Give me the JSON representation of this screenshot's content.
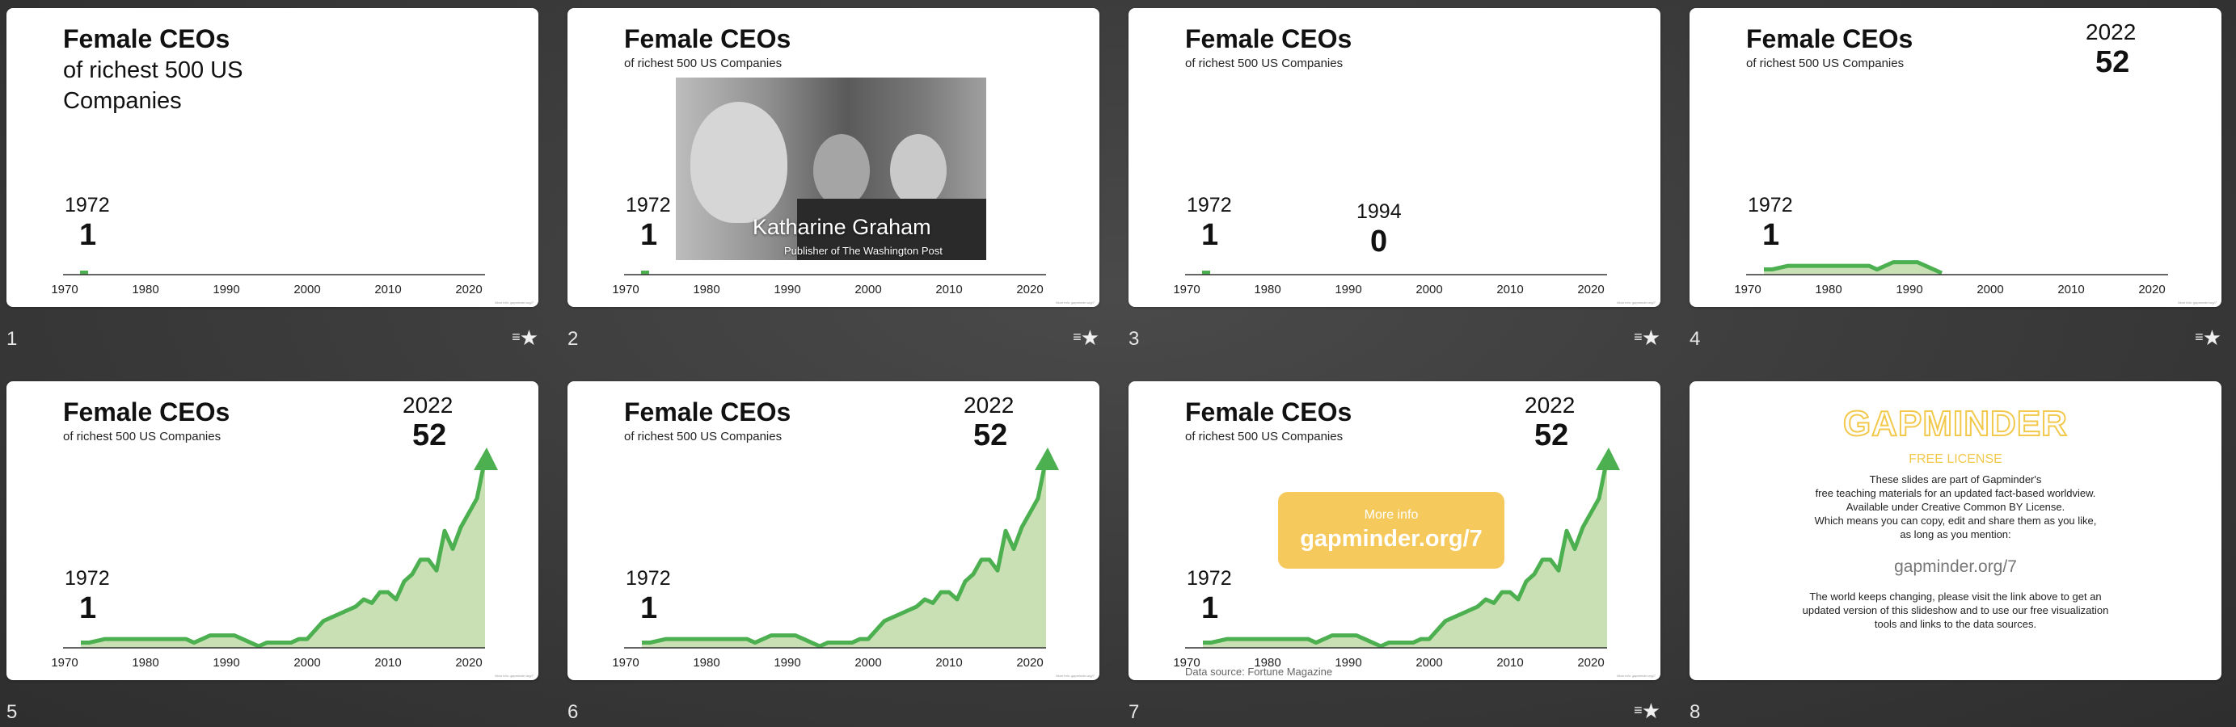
{
  "title": "Female CEOs",
  "subtitle": "of richest 500 US Companies",
  "subtitle_s1": "of richest 500 US Companies",
  "start_year": "1972",
  "start_value": "1",
  "mid_year": "1994",
  "mid_value": "0",
  "end_year": "2022",
  "end_value": "52",
  "axis_ticks": [
    "1970",
    "1980",
    "1990",
    "2000",
    "2010",
    "2020"
  ],
  "photo": {
    "name": "Katharine Graham",
    "role": "Publisher of The Washington Post"
  },
  "more_info": {
    "label": "More info",
    "url": "gapminder.org/7"
  },
  "data_source": "Data source: Fortune Magazine",
  "credit": "More info: gapminder.org/7",
  "fav_icon": "star-list-icon",
  "slide_numbers": [
    "1",
    "2",
    "3",
    "4",
    "5",
    "6",
    "7",
    "8"
  ],
  "license": {
    "logo": "GAPMINDER",
    "heading": "FREE LICENSE",
    "lines": [
      "These slides are part of Gapminder's",
      "free teaching materials for an updated fact-based worldview.",
      "Available under Creative Common BY License.",
      "Which means you can copy, edit and share them as you like,",
      "as long as you mention:"
    ],
    "link": "gapminder.org/7",
    "lines2": [
      "The world keeps changing, please visit the link above to get an",
      "updated version of this slideshow and to use our free visualization",
      "tools and links to the data sources."
    ]
  },
  "colors": {
    "accent_green": "#4caf50",
    "area_green": "#c8e0b4",
    "gapminder_yellow": "#f5c95b"
  },
  "chart_data": {
    "type": "area",
    "title": "Female CEOs",
    "subtitle": "of richest 500 US Companies",
    "xlim": [
      1970,
      2022
    ],
    "x": [
      1972,
      1973,
      1975,
      1980,
      1985,
      1986,
      1988,
      1990,
      1991,
      1992,
      1993,
      1994,
      1995,
      1998,
      1999,
      2000,
      2002,
      2004,
      2005,
      2006,
      2007,
      2008,
      2009,
      2010,
      2011,
      2012,
      2013,
      2014,
      2015,
      2016,
      2017,
      2018,
      2019,
      2020,
      2021,
      2022
    ],
    "values": [
      1,
      1,
      2,
      2,
      2,
      1,
      3,
      3,
      3,
      2,
      1,
      0,
      1,
      1,
      2,
      2,
      7,
      9,
      10,
      11,
      13,
      12,
      15,
      15,
      13,
      18,
      20,
      24,
      24,
      21,
      32,
      27,
      33,
      37,
      41,
      52
    ]
  }
}
